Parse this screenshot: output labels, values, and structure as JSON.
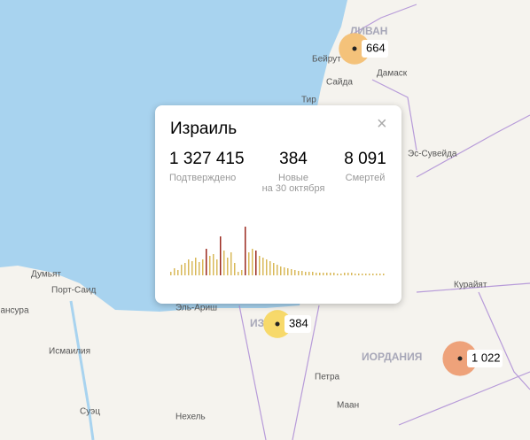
{
  "places": [
    "ЛИВАН",
    "Бейрут",
    "Сайда",
    "Дамаск",
    "Тир",
    "Эс-Сувейда",
    "Думьят",
    "Порт-Саид",
    "Мансура",
    "Эль-Ариш",
    "Исмаилия",
    "Суэц",
    "Нехель",
    "Петра",
    "Маан",
    "ИОРДАНИЯ",
    "Курайят",
    "ИЗРАИЛЬ"
  ],
  "markers": [
    {
      "value": 664,
      "color": "#f4c27a"
    },
    {
      "value": 384,
      "color": "#f7d96a"
    },
    {
      "value": 1022,
      "label": "1 022",
      "color": "#eea27a"
    }
  ],
  "popup": {
    "title": "Израиль",
    "close": "×",
    "stats": [
      {
        "number": "1 327 415",
        "label": "Подтверждено"
      },
      {
        "number": "384",
        "label": "Новые",
        "sub": "на 30 октября"
      },
      {
        "number": "8 091",
        "label": "Смертей"
      }
    ],
    "chart": {
      "type": "bar",
      "values": [
        4,
        8,
        6,
        12,
        14,
        18,
        16,
        20,
        15,
        18,
        30,
        22,
        24,
        18,
        44,
        28,
        20,
        26,
        14,
        4,
        6,
        55,
        26,
        30,
        28,
        22,
        20,
        18,
        16,
        14,
        12,
        10,
        9,
        8,
        7,
        6,
        5,
        5,
        4,
        4,
        4,
        3,
        3,
        3,
        3,
        3,
        3,
        2,
        2,
        3,
        3,
        3,
        2,
        2,
        2,
        2,
        2,
        2,
        2,
        2,
        2
      ],
      "colors": [
        "#d9b95a",
        "#d9b95a",
        "#d9b95a",
        "#d9b95a",
        "#d9b95a",
        "#d9b95a",
        "#d9b95a",
        "#d9b95a",
        "#d9b95a",
        "#d9b95a",
        "#9b2a1f",
        "#d9b95a",
        "#d9b95a",
        "#d9b95a",
        "#9b2a1f",
        "#d9b95a",
        "#d9b95a",
        "#d9b95a",
        "#d9b95a",
        "#d9b95a",
        "#d9b95a",
        "#9b2a1f",
        "#d9b95a",
        "#d9b95a",
        "#9b2a1f",
        "#d9b95a",
        "#d9b95a",
        "#d9b95a",
        "#d9b95a",
        "#d9b95a",
        "#d9b95a",
        "#d9b95a",
        "#d9b95a",
        "#d9b95a",
        "#d9b95a",
        "#d9b95a",
        "#d9b95a",
        "#d9b95a",
        "#d9b95a",
        "#d9b95a",
        "#d9b95a",
        "#d9b95a",
        "#d9b95a",
        "#d9b95a",
        "#d9b95a",
        "#d9b95a",
        "#d9b95a",
        "#d9b95a",
        "#d9b95a",
        "#d9b95a",
        "#d9b95a",
        "#d9b95a",
        "#d9b95a",
        "#d9b95a",
        "#d9b95a",
        "#d9b95a",
        "#d9b95a",
        "#d9b95a",
        "#d9b95a",
        "#d9b95a",
        "#d9b95a"
      ]
    }
  }
}
